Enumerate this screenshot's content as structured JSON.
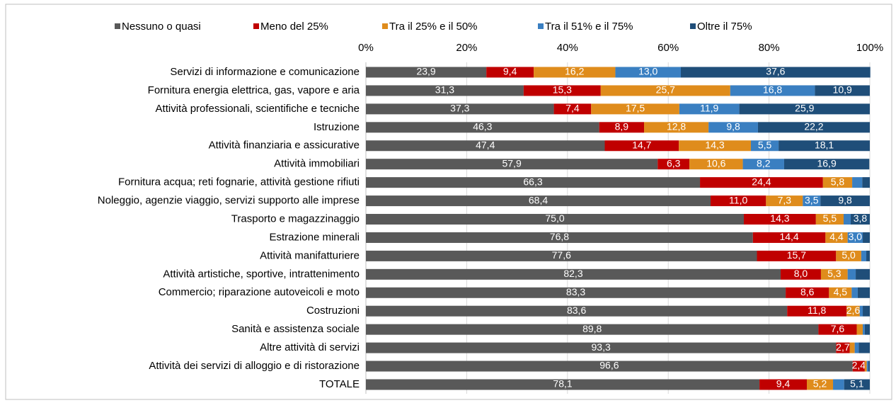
{
  "chart_data": {
    "type": "stacked_bar_horizontal",
    "categories": [
      "Servizi di informazione e comunicazione",
      "Fornitura  energia elettrica, gas, vapore e aria",
      "Attività professionali, scientifiche e tecniche",
      "Istruzione",
      "Attività finanziaria e assicurative",
      "Attività immobiliari",
      "Fornitura acqua; reti fognarie, attività gestione rifiuti",
      "Noleggio, agenzie viaggio, servizi supporto alle imprese",
      "Trasporto e magazzinaggio",
      "Estrazione minerali",
      "Attività manifatturiere",
      "Attività artistiche, sportive, intrattenimento",
      "Commercio; riparazione autoveicoli e moto",
      "Costruzioni",
      "Sanità e assistenza sociale",
      "Altre attività di servizi",
      "Attività dei servizi di alloggio e di ristorazione",
      "TOTALE"
    ],
    "series": [
      {
        "name": "Nessuno o quasi",
        "color": "#595959",
        "values": [
          23.9,
          31.3,
          37.3,
          46.3,
          47.4,
          57.9,
          66.3,
          68.4,
          75.0,
          76.8,
          77.6,
          82.3,
          83.3,
          83.6,
          89.8,
          93.3,
          96.6,
          78.1
        ],
        "value_labels": [
          "23,9",
          "31,3",
          "37,3",
          "46,3",
          "47,4",
          "57,9",
          "66,3",
          "68,4",
          "75,0",
          "76,8",
          "77,6",
          "82,3",
          "83,3",
          "83,6",
          "89,8",
          "93,3",
          "96,6",
          "78,1"
        ]
      },
      {
        "name": "Meno del 25%",
        "color": "#c00000",
        "values": [
          9.4,
          15.3,
          7.4,
          8.9,
          14.7,
          6.3,
          24.4,
          11.0,
          14.3,
          14.4,
          15.7,
          8.0,
          8.6,
          11.8,
          7.6,
          2.7,
          2.4,
          9.4
        ],
        "value_labels": [
          "9,4",
          "15,3",
          "7,4",
          "8,9",
          "14,7",
          "6,3",
          "24,4",
          "11,0",
          "14,3",
          "14,4",
          "15,7",
          "8,0",
          "8,6",
          "11,8",
          "7,6",
          "2,7",
          "2,4",
          "9,4"
        ]
      },
      {
        "name": "Tra il 25% e il 50%",
        "color": "#df8c1c",
        "values": [
          16.2,
          25.7,
          17.5,
          12.8,
          14.3,
          10.6,
          5.8,
          7.3,
          5.5,
          4.4,
          5.0,
          5.3,
          4.5,
          2.6,
          1.2,
          1.0,
          0.4,
          5.2
        ],
        "value_labels": [
          "16,2",
          "25,7",
          "17,5",
          "12,8",
          "14,3",
          "10,6",
          "5,8",
          "7,3",
          "5,5",
          "4,4",
          "5,0",
          "5,3",
          "4,5",
          "2,6",
          null,
          null,
          null,
          "5,2"
        ]
      },
      {
        "name": "Tra il 51% e il 75%",
        "color": "#3a7fc1",
        "values": [
          13.0,
          16.8,
          11.9,
          9.8,
          5.5,
          8.2,
          2.0,
          3.5,
          1.4,
          3.0,
          1.0,
          1.6,
          1.2,
          0.6,
          0.4,
          0.8,
          0.3,
          2.2
        ],
        "value_labels": [
          "13,0",
          "16,8",
          "11,9",
          "9,8",
          "5,5",
          "8,2",
          null,
          "3,5",
          null,
          "3,0",
          null,
          null,
          null,
          null,
          null,
          null,
          null,
          null
        ]
      },
      {
        "name": "Oltre il 75%",
        "color": "#1f4e79",
        "values": [
          37.6,
          10.9,
          25.9,
          22.2,
          18.1,
          16.9,
          1.5,
          9.8,
          3.8,
          1.4,
          0.7,
          2.8,
          2.4,
          1.4,
          1.0,
          2.2,
          0.3,
          5.1
        ],
        "value_labels": [
          "37,6",
          "10,9",
          "25,9",
          "22,2",
          "18,1",
          "16,9",
          null,
          "9,8",
          "3,8",
          null,
          null,
          null,
          null,
          null,
          null,
          null,
          null,
          "5,1"
        ]
      }
    ],
    "xlim": [
      0,
      100
    ],
    "xticks": [
      {
        "value": 0,
        "label": "0%"
      },
      {
        "value": 20,
        "label": "20%"
      },
      {
        "value": 40,
        "label": "40%"
      },
      {
        "value": 60,
        "label": "60%"
      },
      {
        "value": 80,
        "label": "80%"
      },
      {
        "value": 100,
        "label": "100%"
      }
    ],
    "grid": true,
    "legend": "top"
  }
}
